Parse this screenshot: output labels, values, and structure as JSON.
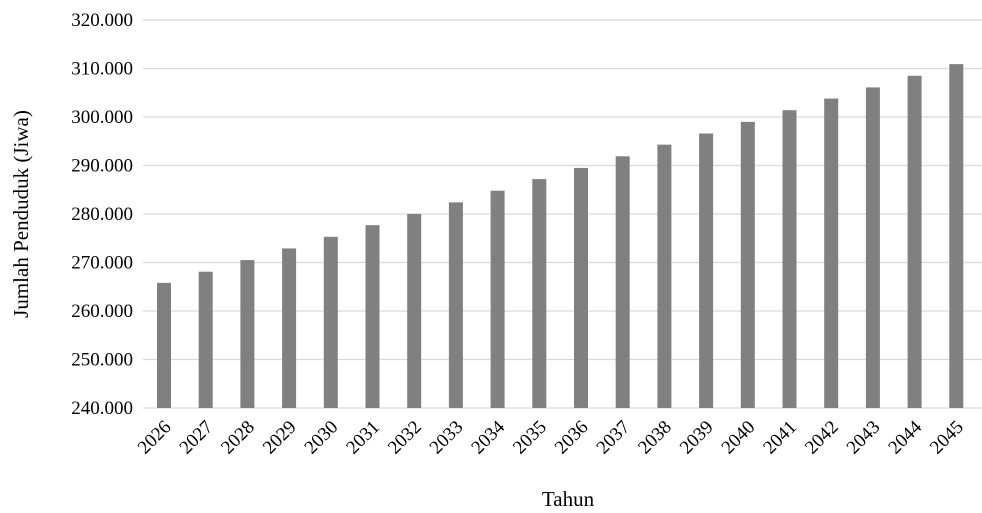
{
  "chart_data": {
    "type": "bar",
    "categories": [
      "2026",
      "2027",
      "2028",
      "2029",
      "2030",
      "2031",
      "2032",
      "2033",
      "2034",
      "2035",
      "2036",
      "2037",
      "2038",
      "2039",
      "2040",
      "2041",
      "2042",
      "2043",
      "2044",
      "2045"
    ],
    "series": [
      {
        "values": [
          265800,
          268100,
          270500,
          272900,
          275300,
          277700,
          280000,
          282400,
          284800,
          287200,
          289500,
          291900,
          294300,
          296600,
          299000,
          301400,
          303800,
          306100,
          308500,
          310900
        ]
      }
    ],
    "y_tick_labels": [
      "240.000",
      "250.000",
      "260.000",
      "270.000",
      "280.000",
      "290.000",
      "300.000",
      "310.000",
      "320.000"
    ],
    "xlabel": "Tahun",
    "ylabel": "Jumlah Penduduk (Jiwa)",
    "ylim": [
      240000,
      320000
    ],
    "ytick_step": 10000,
    "grid": true,
    "legend": "none",
    "bar_color": "#808080",
    "grid_color": "#d9d9d9"
  }
}
